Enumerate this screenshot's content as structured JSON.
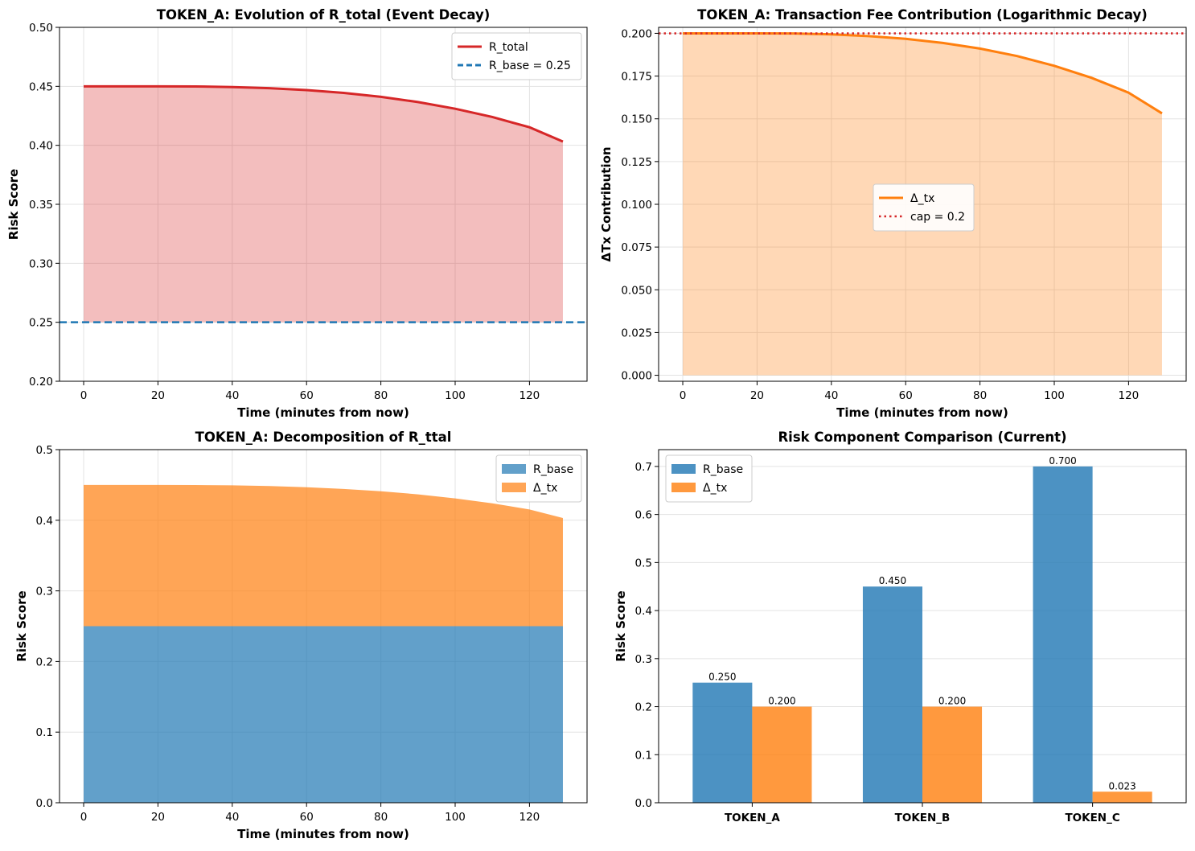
{
  "chart_data": [
    {
      "type": "area",
      "title": "TOKEN_A: Evolution of R_total (Event Decay)",
      "xlabel": "Time (minutes from now)",
      "ylabel": "Risk Score",
      "xlim": [
        -6.5,
        135.5
      ],
      "ylim": [
        0.2,
        0.5
      ],
      "xticks": [
        0,
        20,
        40,
        60,
        80,
        100,
        120
      ],
      "yticks": [
        "0.20",
        "0.25",
        "0.30",
        "0.35",
        "0.40",
        "0.45",
        "0.50"
      ],
      "grid": true,
      "legend_position": "upper right",
      "x": [
        0,
        10,
        20,
        30,
        40,
        50,
        60,
        70,
        80,
        90,
        100,
        110,
        120,
        129
      ],
      "series": [
        {
          "name": "R_total",
          "style": "solid line with fill to R_base",
          "color": "#d62728",
          "values": [
            0.45,
            0.45,
            0.45,
            0.4499,
            0.4494,
            0.4484,
            0.4468,
            0.4444,
            0.4411,
            0.4367,
            0.431,
            0.424,
            0.4153,
            0.4032
          ]
        },
        {
          "name": "R_base = 0.25",
          "style": "dashed horizontal line",
          "color": "#1f77b4",
          "value": 0.25
        }
      ]
    },
    {
      "type": "area",
      "title": "TOKEN_A: Transaction Fee Contribution (Logarithmic Decay)",
      "xlabel": "Time (minutes from now)",
      "ylabel": "ΔTx Contribution",
      "xlim": [
        -6.5,
        135.5
      ],
      "ylim": [
        -0.0035,
        0.2035
      ],
      "xticks": [
        0,
        20,
        40,
        60,
        80,
        100,
        120
      ],
      "yticks": [
        "0.000",
        "0.025",
        "0.050",
        "0.075",
        "0.100",
        "0.125",
        "0.150",
        "0.175",
        "0.200"
      ],
      "grid": true,
      "legend_position": "center",
      "x": [
        0,
        10,
        20,
        30,
        40,
        50,
        60,
        70,
        80,
        90,
        100,
        110,
        120,
        129
      ],
      "series": [
        {
          "name": "Δ_tx",
          "style": "solid line with fill to zero",
          "color": "#ff7f0e",
          "values": [
            0.2,
            0.2,
            0.2,
            0.1999,
            0.1994,
            0.1984,
            0.1968,
            0.1944,
            0.1911,
            0.1867,
            0.181,
            0.174,
            0.1653,
            0.1532
          ]
        },
        {
          "name": "cap = 0.2",
          "style": "dotted horizontal line",
          "color": "#d62728",
          "value": 0.2
        }
      ]
    },
    {
      "type": "area",
      "stacked": true,
      "title": "TOKEN_A: Decomposition of R_ttal",
      "xlabel": "Time (minutes from now)",
      "ylabel": "Risk Score",
      "xlim": [
        -6.5,
        135.5
      ],
      "ylim": [
        0,
        0.5
      ],
      "xticks": [
        0,
        20,
        40,
        60,
        80,
        100,
        120
      ],
      "yticks": [
        "0.0",
        "0.1",
        "0.2",
        "0.3",
        "0.4",
        "0.5"
      ],
      "grid": true,
      "legend_position": "upper right",
      "x": [
        0,
        10,
        20,
        30,
        40,
        50,
        60,
        70,
        80,
        90,
        100,
        110,
        120,
        129
      ],
      "series": [
        {
          "name": "R_base",
          "color": "#1f77b4",
          "values": [
            0.25,
            0.25,
            0.25,
            0.25,
            0.25,
            0.25,
            0.25,
            0.25,
            0.25,
            0.25,
            0.25,
            0.25,
            0.25,
            0.25
          ]
        },
        {
          "name": "Δ_tx",
          "color": "#ff7f0e",
          "values": [
            0.2,
            0.2,
            0.2,
            0.1999,
            0.1994,
            0.1984,
            0.1968,
            0.1944,
            0.1911,
            0.1867,
            0.181,
            0.174,
            0.1653,
            0.1532
          ]
        }
      ]
    },
    {
      "type": "bar",
      "title": "Risk Component Comparison (Current)",
      "xlabel": "",
      "ylabel": "Risk Score",
      "ylim": [
        0,
        0.735
      ],
      "yticks": [
        "0.0",
        "0.1",
        "0.2",
        "0.3",
        "0.4",
        "0.5",
        "0.6",
        "0.7"
      ],
      "grid": true,
      "legend_position": "upper left",
      "categories": [
        "TOKEN_A",
        "TOKEN_B",
        "TOKEN_C"
      ],
      "series": [
        {
          "name": "R_base",
          "color": "#1f77b4",
          "values": [
            0.25,
            0.45,
            0.7
          ],
          "labels": [
            "0.250",
            "0.450",
            "0.700"
          ]
        },
        {
          "name": "Δ_tx",
          "color": "#ff7f0e",
          "values": [
            0.2,
            0.2,
            0.023
          ],
          "labels": [
            "0.200",
            "0.200",
            "0.023"
          ]
        }
      ]
    }
  ]
}
